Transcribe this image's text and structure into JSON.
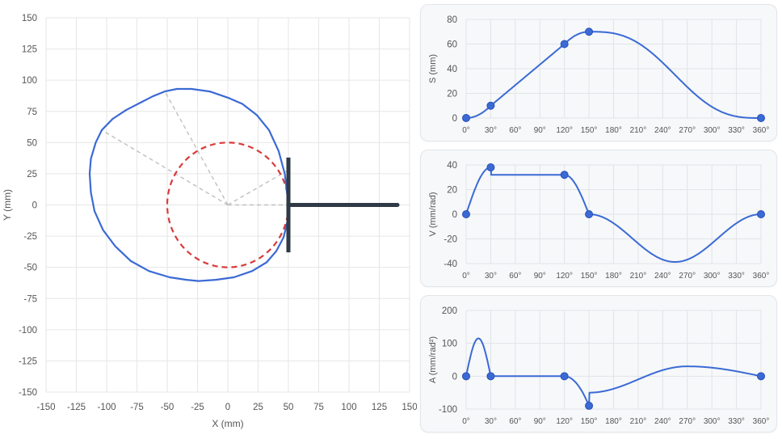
{
  "cam_view": {
    "xlabel": "X (mm)",
    "ylabel": "Y (mm)",
    "x_ticks": [
      "-150",
      "-125",
      "-100",
      "-75",
      "-50",
      "-25",
      "0",
      "25",
      "50",
      "75",
      "100",
      "125",
      "150"
    ],
    "y_ticks": [
      "150",
      "125",
      "100",
      "75",
      "50",
      "25",
      "0",
      "-25",
      "-50",
      "-75",
      "-100",
      "-125",
      "-150"
    ]
  },
  "chart_data": [
    {
      "type": "scatter",
      "name": "cam-profile",
      "xlabel": "X (mm)",
      "ylabel": "Y (mm)",
      "xlim": [
        -150,
        150
      ],
      "ylim": [
        -150,
        150
      ],
      "grid": true,
      "base_circle_radius": 50,
      "follower_stem_x": [
        50,
        140
      ],
      "follower_face_x": 50,
      "follower_face_y": [
        -38,
        38
      ],
      "profile_points": [
        [
          50,
          0
        ],
        [
          47,
          25
        ],
        [
          42,
          43
        ],
        [
          34,
          60
        ],
        [
          24,
          72
        ],
        [
          12,
          81
        ],
        [
          0,
          86
        ],
        [
          -15,
          91
        ],
        [
          -30,
          93
        ],
        [
          -42,
          93
        ],
        [
          -52,
          91
        ],
        [
          -62,
          87
        ],
        [
          -72,
          82
        ],
        [
          -84,
          76
        ],
        [
          -95,
          69
        ],
        [
          -104,
          60
        ],
        [
          -109,
          50
        ],
        [
          -113,
          37
        ],
        [
          -114,
          25
        ],
        [
          -113,
          10
        ],
        [
          -110,
          -5
        ],
        [
          -103,
          -20
        ],
        [
          -93,
          -33
        ],
        [
          -80,
          -45
        ],
        [
          -65,
          -53
        ],
        [
          -48,
          -58
        ],
        [
          -34,
          -60
        ],
        [
          -24,
          -61
        ],
        [
          -10,
          -60
        ],
        [
          5,
          -58
        ],
        [
          20,
          -53
        ],
        [
          32,
          -46
        ],
        [
          40,
          -37
        ],
        [
          46,
          -26
        ],
        [
          49,
          -14
        ],
        [
          50,
          0
        ]
      ],
      "radial_lines_to": [
        [
          -52,
          91
        ],
        [
          -104,
          60
        ],
        [
          50,
          28
        ],
        [
          140,
          0
        ]
      ],
      "colors": {
        "profile": "#3b6ad4",
        "base_circle": "#d93a3a",
        "follower": "#2f3a46",
        "guides": "#c0c0c0"
      }
    },
    {
      "type": "line",
      "name": "displacement",
      "ylabel": "S (mm)",
      "x": [
        0,
        30,
        120,
        150,
        360
      ],
      "x_ticks": [
        "0°",
        "30°",
        "60°",
        "90°",
        "120°",
        "150°",
        "180°",
        "210°",
        "240°",
        "270°",
        "300°",
        "330°",
        "360°"
      ],
      "ylim": [
        0,
        80
      ],
      "y_ticks": [
        0,
        20,
        40,
        60,
        80
      ],
      "values": [
        0,
        10,
        60,
        70,
        0
      ],
      "markers": [
        [
          0,
          0
        ],
        [
          30,
          10
        ],
        [
          120,
          60
        ],
        [
          150,
          70
        ],
        [
          360,
          0
        ]
      ],
      "grid": true,
      "color": "#3b6ad4"
    },
    {
      "type": "line",
      "name": "velocity",
      "ylabel": "V (mm/rad)",
      "x": [
        0,
        30,
        120,
        150,
        360
      ],
      "x_ticks": [
        "0°",
        "30°",
        "60°",
        "90°",
        "120°",
        "150°",
        "180°",
        "210°",
        "240°",
        "270°",
        "300°",
        "330°",
        "360°"
      ],
      "ylim": [
        -40,
        40
      ],
      "y_ticks": [
        -40,
        -20,
        0,
        20,
        40
      ],
      "values": [
        0,
        38,
        32,
        0,
        0
      ],
      "markers": [
        [
          0,
          0
        ],
        [
          30,
          38
        ],
        [
          120,
          32
        ],
        [
          150,
          0
        ],
        [
          360,
          0
        ]
      ],
      "min_value": [
        213,
        -38.7
      ],
      "grid": true,
      "color": "#3b6ad4"
    },
    {
      "type": "line",
      "name": "acceleration",
      "ylabel": "A (mm/rad²)",
      "x": [
        0,
        30,
        120,
        150,
        360
      ],
      "x_ticks": [
        "0°",
        "30°",
        "60°",
        "90°",
        "120°",
        "150°",
        "180°",
        "210°",
        "240°",
        "270°",
        "300°",
        "330°",
        "360°"
      ],
      "ylim": [
        -100,
        200
      ],
      "y_ticks": [
        -100,
        0,
        100,
        200
      ],
      "values": [
        0,
        0,
        0,
        -90,
        0
      ],
      "markers": [
        [
          0,
          0
        ],
        [
          30,
          0
        ],
        [
          120,
          0
        ],
        [
          150,
          -90
        ],
        [
          360,
          0
        ]
      ],
      "peak_value": [
        15,
        115
      ],
      "after_jump": [
        150,
        -50
      ],
      "max_value": [
        270,
        30
      ],
      "grid": true,
      "color": "#3b6ad4"
    }
  ]
}
